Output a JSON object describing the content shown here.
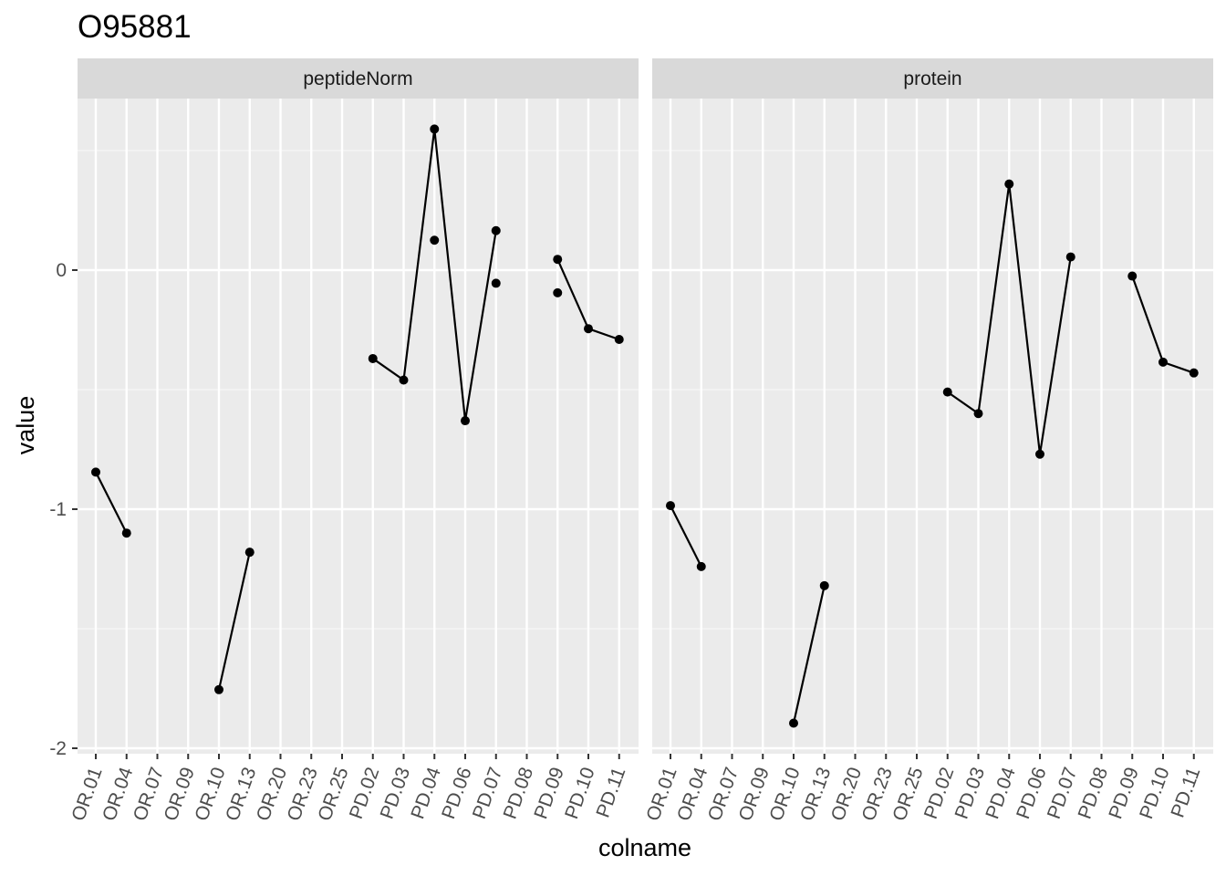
{
  "chart_data": {
    "type": "line",
    "title": "O95881",
    "xlabel": "colname",
    "ylabel": "value",
    "categories": [
      "OR.01",
      "OR.04",
      "OR.07",
      "OR.09",
      "OR.10",
      "OR.13",
      "OR.20",
      "OR.23",
      "OR.25",
      "PD.02",
      "PD.03",
      "PD.04",
      "PD.06",
      "PD.07",
      "PD.08",
      "PD.09",
      "PD.10",
      "PD.11"
    ],
    "ylim": [
      -2.0,
      0.7
    ],
    "yticks": [
      -2,
      -1,
      0
    ],
    "grid": true,
    "facets": [
      {
        "label": "peptideNorm",
        "line": [
          {
            "segment": [
              [
                "OR.01",
                -0.845
              ],
              [
                "OR.04",
                -1.1
              ]
            ]
          },
          {
            "segment": [
              [
                "OR.10",
                -1.755
              ],
              [
                "OR.13",
                -1.18
              ]
            ]
          },
          {
            "segment": [
              [
                "PD.02",
                -0.37
              ],
              [
                "PD.03",
                -0.46
              ],
              [
                "PD.04",
                0.59
              ],
              [
                "PD.06",
                -0.63
              ],
              [
                "PD.07",
                0.165
              ]
            ]
          },
          {
            "segment": [
              [
                "PD.09",
                0.045
              ],
              [
                "PD.10",
                -0.245
              ],
              [
                "PD.11",
                -0.29
              ]
            ]
          }
        ],
        "extra_points": [
          [
            "PD.04",
            0.125
          ],
          [
            "PD.07",
            -0.055
          ],
          [
            "PD.09",
            -0.095
          ]
        ]
      },
      {
        "label": "protein",
        "line": [
          {
            "segment": [
              [
                "OR.01",
                -0.985
              ],
              [
                "OR.04",
                -1.24
              ]
            ]
          },
          {
            "segment": [
              [
                "OR.10",
                -1.895
              ],
              [
                "OR.13",
                -1.32
              ]
            ]
          },
          {
            "segment": [
              [
                "PD.02",
                -0.51
              ],
              [
                "PD.03",
                -0.6
              ],
              [
                "PD.04",
                0.36
              ],
              [
                "PD.06",
                -0.77
              ],
              [
                "PD.07",
                0.055
              ]
            ]
          },
          {
            "segment": [
              [
                "PD.09",
                -0.025
              ],
              [
                "PD.10",
                -0.385
              ],
              [
                "PD.11",
                -0.43
              ]
            ]
          }
        ],
        "extra_points": []
      }
    ]
  }
}
